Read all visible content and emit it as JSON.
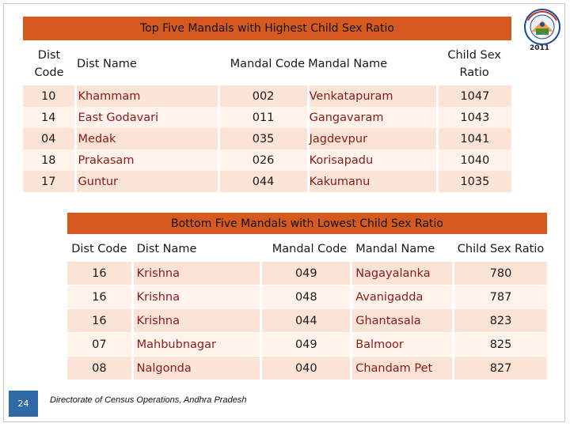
{
  "top": {
    "title": "Top Five Mandals with Highest Child Sex Ratio",
    "headers": {
      "dist_code_line1": "Dist",
      "dist_code_line2": "Code",
      "dist_name": "Dist Name",
      "mandal_code": "Mandal Code",
      "mandal_name": "Mandal Name",
      "ratio_line1": "Child Sex",
      "ratio_line2": "Ratio"
    },
    "rows": [
      {
        "dist_code": "10",
        "dist_name": "Khammam",
        "mandal_code": "002",
        "mandal_name": "Venkatapuram",
        "ratio": "1047"
      },
      {
        "dist_code": "14",
        "dist_name": "East Godavari",
        "mandal_code": "011",
        "mandal_name": "Gangavaram",
        "ratio": "1043"
      },
      {
        "dist_code": "04",
        "dist_name": "Medak",
        "mandal_code": "035",
        "mandal_name": "Jagdevpur",
        "ratio": "1041"
      },
      {
        "dist_code": "18",
        "dist_name": "Prakasam",
        "mandal_code": "026",
        "mandal_name": "Korisapadu",
        "ratio": "1040"
      },
      {
        "dist_code": "17",
        "dist_name": "Guntur",
        "mandal_code": "044",
        "mandal_name": "Kakumanu",
        "ratio": "1035"
      }
    ]
  },
  "bottom": {
    "title": "Bottom Five Mandals with Lowest Child Sex Ratio",
    "headers": {
      "dist_code": "Dist Code",
      "dist_name": "Dist Name",
      "mandal_code": "Mandal Code",
      "mandal_name": "Mandal Name",
      "ratio": "Child Sex Ratio"
    },
    "rows": [
      {
        "dist_code": "16",
        "dist_name": "Krishna",
        "mandal_code": "049",
        "mandal_name": "Nagayalanka",
        "ratio": "780"
      },
      {
        "dist_code": "16",
        "dist_name": "Krishna",
        "mandal_code": "048",
        "mandal_name": "Avanigadda",
        "ratio": "787"
      },
      {
        "dist_code": "16",
        "dist_name": "Krishna",
        "mandal_code": "044",
        "mandal_name": "Ghantasala",
        "ratio": "823"
      },
      {
        "dist_code": "07",
        "dist_name": "Mahbubnagar",
        "mandal_code": "049",
        "mandal_name": "Balmoor",
        "ratio": "825"
      },
      {
        "dist_code": "08",
        "dist_name": "Nalgonda",
        "mandal_code": "040",
        "mandal_name": "Chandam Pet",
        "ratio": "827"
      }
    ]
  },
  "logo": {
    "year": "2011",
    "icon": "census-of-india-logo-icon"
  },
  "footer": {
    "page_number": "24",
    "text": "Directorate of Census Operations, Andhra Pradesh"
  },
  "colors": {
    "banner": "#d65a20",
    "row_odd": "#fbe3d6",
    "row_even": "#fff3ec",
    "text_dark_red": "#8b1a1a",
    "page_badge": "#2e6aa8"
  }
}
